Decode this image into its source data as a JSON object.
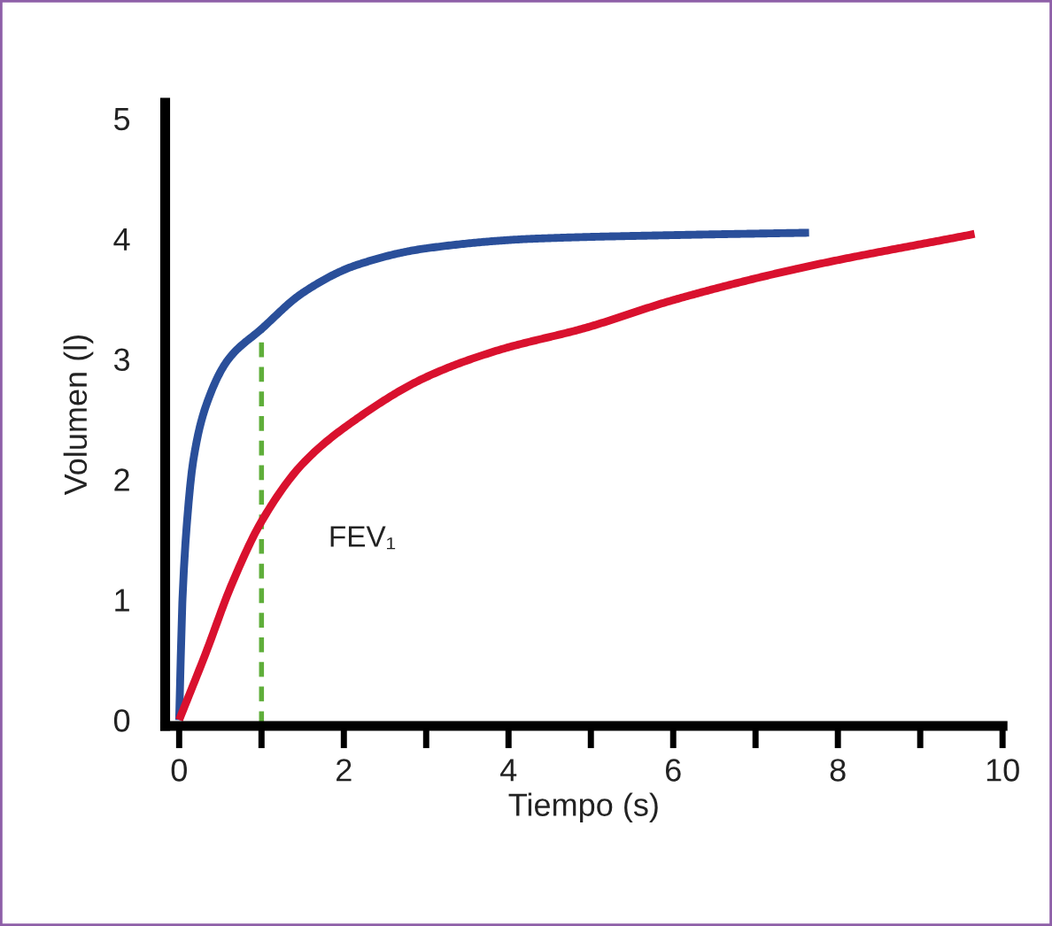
{
  "chart_data": {
    "type": "line",
    "xlabel": "Tiempo (s)",
    "ylabel": "Volumen (l)",
    "xlim": [
      -0.17,
      10
    ],
    "ylim": [
      -0.05,
      5.13
    ],
    "xticks": [
      0,
      {
        "value": 1,
        "label": null
      },
      2,
      {
        "value": 3,
        "label": null
      },
      4,
      {
        "value": 5,
        "label": null
      },
      6,
      {
        "value": 7,
        "label": null
      },
      8,
      {
        "value": 9,
        "label": null
      },
      10
    ],
    "yticks": [
      0,
      1,
      2,
      3,
      4,
      5
    ],
    "grid": false,
    "legend": false,
    "marker": "none",
    "line_style": "solid",
    "series": [
      {
        "color": "#2a4f9a",
        "x": [
          0,
          0.04,
          0.09,
          0.17,
          0.32,
          0.6,
          1.0,
          1.5,
          2.15,
          3.0,
          4.3,
          6.0,
          7.65
        ],
        "values": [
          0,
          1.0,
          1.6,
          2.15,
          2.6,
          3.0,
          3.25,
          3.55,
          3.78,
          3.92,
          4.0,
          4.03,
          4.05
        ]
      },
      {
        "color": "#d9112e",
        "x": [
          0,
          0.32,
          0.64,
          1.0,
          1.5,
          2.15,
          3.0,
          3.86,
          4.94,
          6.0,
          7.5,
          9.66
        ],
        "values": [
          0,
          0.55,
          1.13,
          1.65,
          2.13,
          2.5,
          2.85,
          3.07,
          3.26,
          3.49,
          3.75,
          4.04
        ]
      }
    ],
    "ref_lines": [
      {
        "axis": "x",
        "value": 1,
        "label": null,
        "color": "#5fae3a",
        "line_style": "dashed"
      }
    ],
    "annotations": [
      "FEV₁"
    ]
  }
}
